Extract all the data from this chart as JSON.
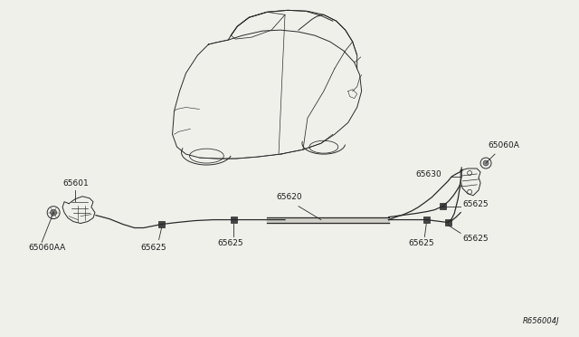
{
  "bg_color": "#f0f0eb",
  "line_color": "#2a2a2a",
  "label_color": "#1a1a1a",
  "diagram_ref": "R656004J",
  "font_size": 6.5,
  "lw": 0.8
}
